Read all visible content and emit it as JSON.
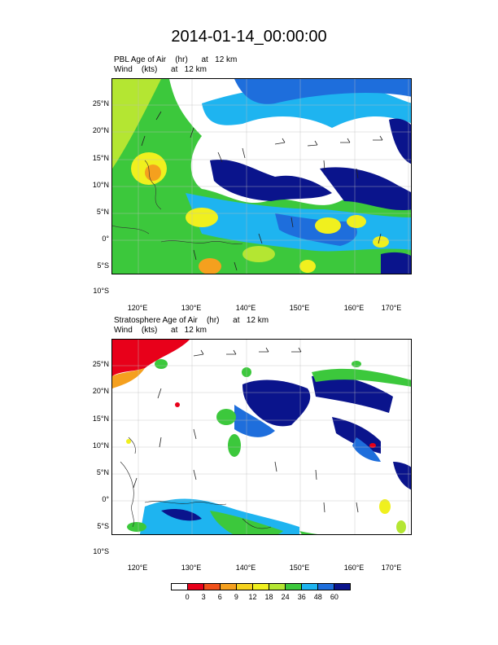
{
  "title": "2014-01-14_00:00:00",
  "panels": [
    {
      "field_line": "PBL Age of Air    (hr)      at   12 km",
      "wind_line": "Wind    (kts)      at   12 km"
    },
    {
      "field_line": "Stratosphere Age of Air    (hr)      at   12 km",
      "wind_line": "Wind    (kts)      at   12 km"
    }
  ],
  "lat_labels": [
    "25°N",
    "20°N",
    "15°N",
    "10°N",
    "5°N",
    "0°",
    "5°S",
    "10°S"
  ],
  "lon_labels": [
    "120°E",
    "130°E",
    "140°E",
    "150°E",
    "160°E",
    "170°E"
  ],
  "colorbar": {
    "labels": [
      "0",
      "3",
      "6",
      "9",
      "12",
      "18",
      "24",
      "36",
      "48",
      "60"
    ],
    "colors": [
      "#ffffff",
      "#e8001a",
      "#f0501a",
      "#f5a01e",
      "#f5d21e",
      "#f0f01e",
      "#b4e632",
      "#3cc83c",
      "#1eb4f0",
      "#1e6edc",
      "#0a148c"
    ]
  }
}
